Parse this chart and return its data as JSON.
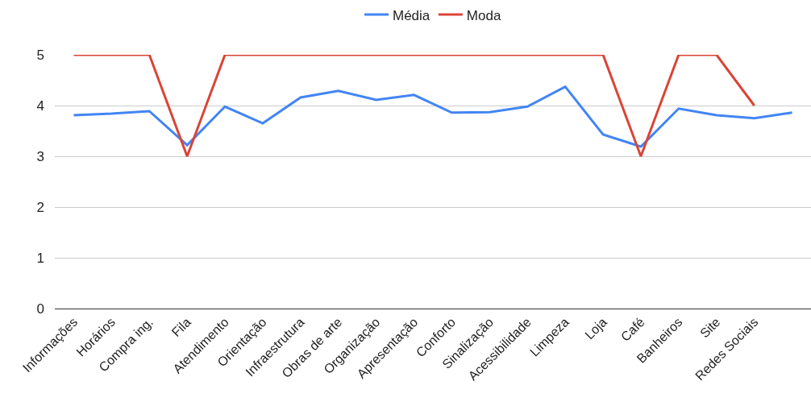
{
  "chart_data": {
    "type": "line",
    "categories": [
      "Informações",
      "Horários",
      "Compra ing.",
      "Fila",
      "Atendimento",
      "Orientação",
      "Infraestrutura",
      "Obras de arte",
      "Organização",
      "Apresentação",
      "Conforto",
      "Sinalização",
      "Acessibilidade",
      "Limpeza",
      "Loja",
      "Café",
      "Banheiros",
      "Site",
      "Redes Sociais",
      null
    ],
    "series": [
      {
        "name": "Média",
        "color": "#4285f4",
        "values": [
          3.81,
          3.84,
          3.89,
          3.22,
          3.98,
          3.65,
          4.16,
          4.29,
          4.11,
          4.21,
          3.86,
          3.87,
          3.98,
          4.37,
          3.43,
          3.19,
          3.94,
          3.81,
          3.75,
          3.86
        ]
      },
      {
        "name": "Moda",
        "color": "#db4437",
        "values": [
          5,
          5,
          5,
          3,
          5,
          5,
          5,
          5,
          5,
          5,
          5,
          5,
          5,
          5,
          5,
          3,
          5,
          5,
          4,
          null
        ]
      }
    ],
    "ylim": [
      0,
      5
    ],
    "yticks": [
      0,
      1,
      2,
      3,
      4,
      5
    ],
    "grid": "y",
    "legend": "top",
    "marker": "none",
    "line_style": "solid"
  }
}
